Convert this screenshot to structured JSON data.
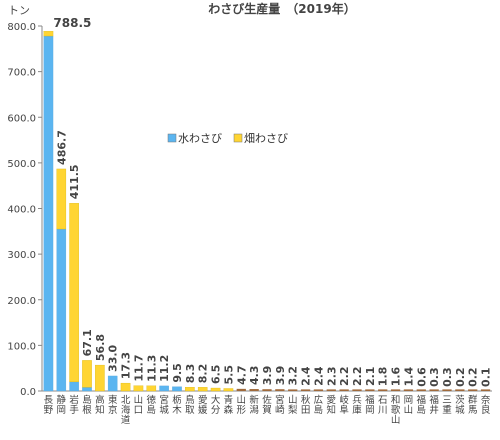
{
  "chart_data": {
    "type": "bar",
    "stacked": true,
    "title": "わさび生産量　（2019年）",
    "ylabel": "トン",
    "ylim": [
      0,
      800
    ],
    "yticks": [
      "0.0",
      "100.0",
      "200.0",
      "300.0",
      "400.0",
      "500.0",
      "600.0",
      "700.0",
      "800.0"
    ],
    "grid": false,
    "legend_position": "center",
    "categories": [
      "長野",
      "静岡",
      "岩手",
      "島根",
      "高知",
      "東京",
      "北海道",
      "山口",
      "徳島",
      "宮城",
      "栃木",
      "鳥取",
      "愛媛",
      "大分",
      "青森",
      "山形",
      "新潟",
      "佐賀",
      "宮崎",
      "山梨",
      "秋田",
      "広島",
      "愛知",
      "岐阜",
      "兵庫",
      "福岡",
      "石川",
      "和歌山",
      "岡山",
      "福島",
      "福井",
      "三重",
      "茨城",
      "群馬",
      "奈良"
    ],
    "totals": [
      788.5,
      486.7,
      411.5,
      67.1,
      56.8,
      33.0,
      17.3,
      11.7,
      11.3,
      11.2,
      9.5,
      8.3,
      8.2,
      6.5,
      5.5,
      4.7,
      4.3,
      3.9,
      3.9,
      3.2,
      2.4,
      2.4,
      2.3,
      2.2,
      2.2,
      2.1,
      1.8,
      1.6,
      1.4,
      0.6,
      0.3,
      0.3,
      0.2,
      0.2,
      0.1
    ],
    "total_labels": [
      "788.5",
      "486.7",
      "411.5",
      "67.1",
      "56.8",
      "33.0",
      "17.3",
      "11.7",
      "11.3",
      "11.2",
      "9.5",
      "8.3",
      "8.2",
      "6.5",
      "5.5",
      "4.7",
      "4.3",
      "3.9",
      "3.9",
      "3.2",
      "2.4",
      "2.4",
      "2.3",
      "2.2",
      "2.2",
      "2.1",
      "1.8",
      "1.6",
      "1.4",
      "0.6",
      "0.3",
      "0.3",
      "0.2",
      "0.2",
      "0.1"
    ],
    "series": [
      {
        "name": "水わさび",
        "color": "#5bb5f0",
        "values": [
          778,
          355,
          20,
          8,
          0,
          33,
          0,
          0,
          0,
          11.2,
          9.5,
          0,
          0,
          0,
          0,
          0,
          0,
          0,
          0,
          0,
          0,
          0,
          0,
          0,
          0,
          0,
          0,
          0,
          0,
          0,
          0,
          0,
          0,
          0,
          0
        ]
      },
      {
        "name": "畑わさび",
        "color": "#ffd533",
        "values": [
          10.5,
          131.7,
          391.5,
          59.1,
          56.8,
          0,
          17.3,
          11.7,
          11.3,
          0,
          0,
          8.3,
          8.2,
          6.5,
          5.5,
          4.7,
          4.3,
          3.9,
          3.9,
          3.2,
          2.4,
          2.4,
          2.3,
          2.2,
          2.2,
          2.1,
          1.8,
          1.6,
          1.4,
          0.6,
          0.3,
          0.3,
          0.2,
          0.2,
          0.1
        ]
      }
    ],
    "small_bar_color": "#a06a3c"
  }
}
